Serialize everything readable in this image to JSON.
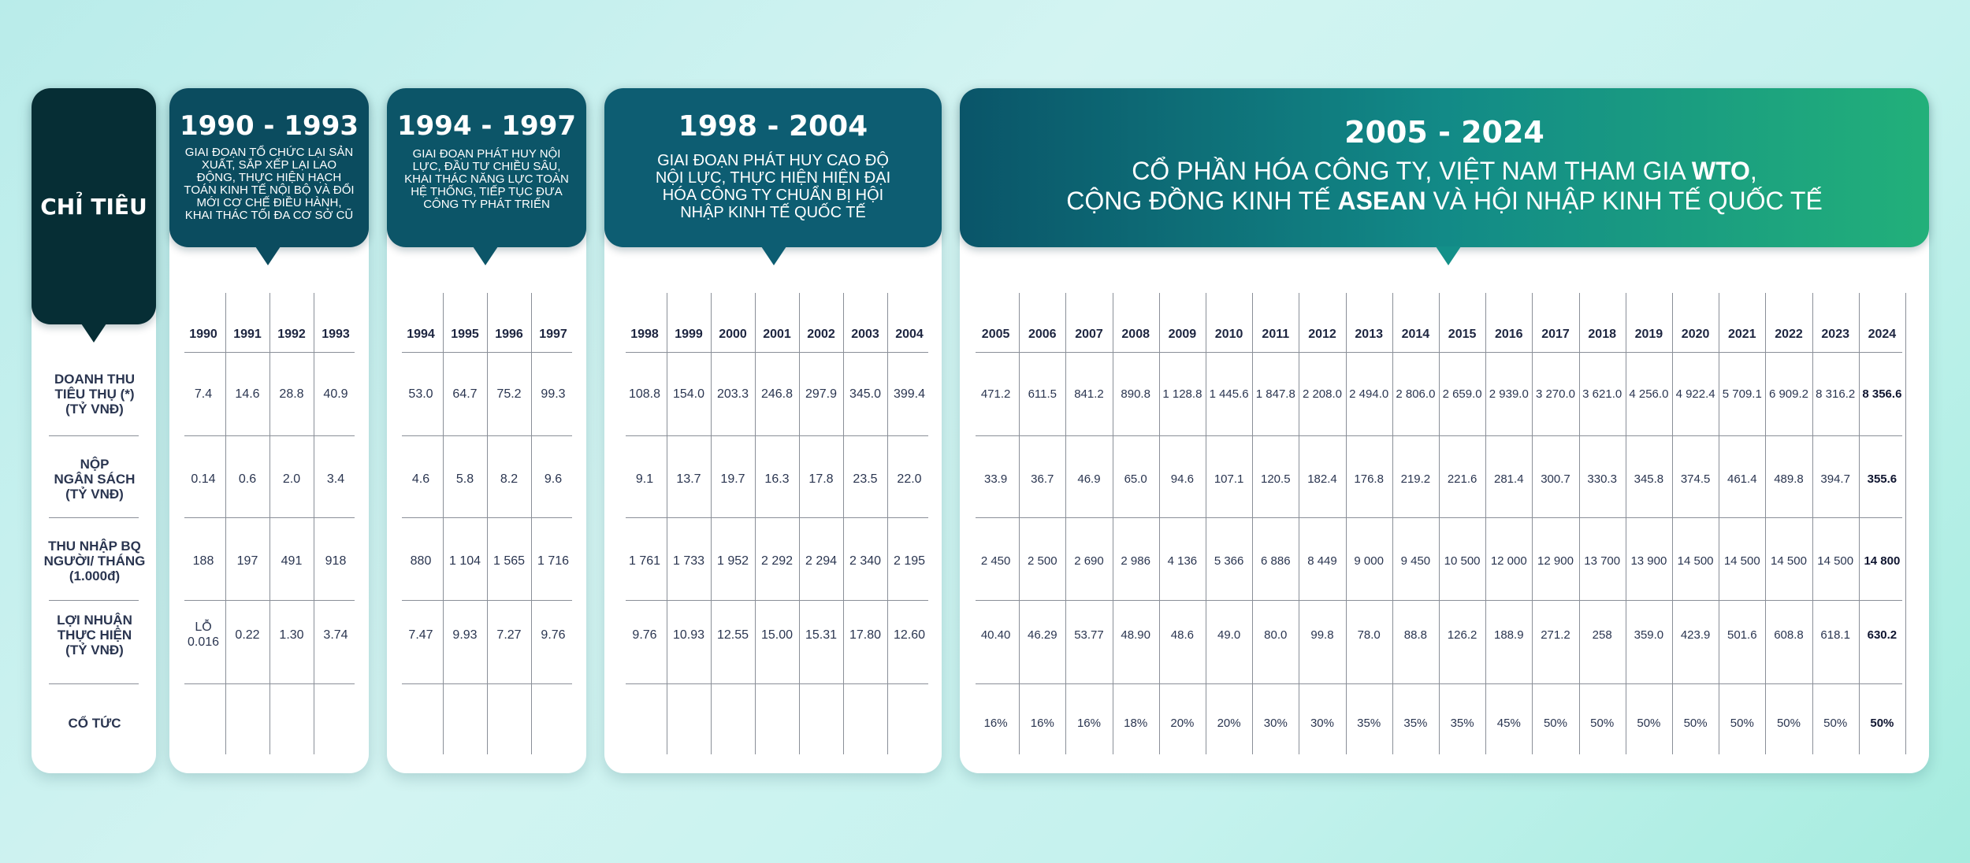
{
  "indicator_header": "CHỈ TIÊU",
  "row_labels": [
    "DOANH THU\nTIÊU THỤ (*)\n(TỶ VNĐ)",
    "NỘP\nNGÂN SÁCH\n(TỶ VNĐ)",
    "THU NHẬP BQ\nNGƯỜI/ THÁNG\n(1.000đ)",
    "LỢI NHUẬN\nTHỰC HIỆN\n(TỶ VNĐ)",
    "CỔ TỨC"
  ],
  "periods": [
    {
      "title": "1990 - 1993",
      "desc": "GIAI ĐOẠN TỔ CHỨC LẠI SẢN XUẤT, SẮP XẾP LẠI LAO ĐỘNG, THỰC HIỆN HẠCH TOÁN KINH TẾ NỘI BỘ VÀ ĐỔI MỚI CƠ CHẾ ĐIỀU HÀNH, KHAI THÁC TỐI ĐA CƠ SỞ CŨ",
      "years": [
        "1990",
        "1991",
        "1992",
        "1993"
      ],
      "rows": [
        [
          "7.4",
          "14.6",
          "28.8",
          "40.9"
        ],
        [
          "0.14",
          "0.6",
          "2.0",
          "3.4"
        ],
        [
          "188",
          "197",
          "491",
          "918"
        ],
        [
          "LỖ\n0.016",
          "0.22",
          "1.30",
          "3.74"
        ],
        [
          "",
          "",
          "",
          ""
        ]
      ]
    },
    {
      "title": "1994 - 1997",
      "desc": "GIAI ĐOẠN PHÁT HUY NỘI LỰC, ĐẦU TƯ CHIỀU SÂU, KHAI THÁC NĂNG LỰC TOÀN HỆ THỐNG, TIẾP TỤC ĐƯA CÔNG TY PHÁT TRIỂN",
      "years": [
        "1994",
        "1995",
        "1996",
        "1997"
      ],
      "rows": [
        [
          "53.0",
          "64.7",
          "75.2",
          "99.3"
        ],
        [
          "4.6",
          "5.8",
          "8.2",
          "9.6"
        ],
        [
          "880",
          "1 104",
          "1 565",
          "1 716"
        ],
        [
          "7.47",
          "9.93",
          "7.27",
          "9.76"
        ],
        [
          "",
          "",
          "",
          ""
        ]
      ]
    },
    {
      "title": "1998 - 2004",
      "desc": "GIAI ĐOẠN PHÁT HUY CAO ĐỘ NỘI LỰC, THỰC HIỆN HIỆN ĐẠI HÓA CÔNG TY CHUẨN BỊ HỘI NHẬP KINH TẾ QUỐC TẾ",
      "years": [
        "1998",
        "1999",
        "2000",
        "2001",
        "2002",
        "2003",
        "2004"
      ],
      "rows": [
        [
          "108.8",
          "154.0",
          "203.3",
          "246.8",
          "297.9",
          "345.0",
          "399.4"
        ],
        [
          "9.1",
          "13.7",
          "19.7",
          "16.3",
          "17.8",
          "23.5",
          "22.0"
        ],
        [
          "1 761",
          "1 733",
          "1 952",
          "2 292",
          "2 294",
          "2 340",
          "2 195"
        ],
        [
          "9.76",
          "10.93",
          "12.55",
          "15.00",
          "15.31",
          "17.80",
          "12.60"
        ],
        [
          "",
          "",
          "",
          "",
          "",
          "",
          ""
        ]
      ]
    },
    {
      "title": "2005 - 2024",
      "desc_line1_pre": "CỔ PHẦN HÓA CÔNG TY, VIỆT NAM THAM GIA ",
      "desc_line1_bold": "WTO",
      "desc_line1_post": ",",
      "desc_line2_pre": "CỘNG ĐỒNG KINH TẾ ",
      "desc_line2_bold": "ASEAN",
      "desc_line2_post": " VÀ HỘI NHẬP KINH TẾ QUỐC TẾ",
      "years": [
        "2005",
        "2006",
        "2007",
        "2008",
        "2009",
        "2010",
        "2011",
        "2012",
        "2013",
        "2014",
        "2015",
        "2016",
        "2017",
        "2018",
        "2019",
        "2020",
        "2021",
        "2022",
        "2023",
        "2024"
      ],
      "rows": [
        [
          "471.2",
          "611.5",
          "841.2",
          "890.8",
          "1 128.8",
          "1 445.6",
          "1 847.8",
          "2 208.0",
          "2 494.0",
          "2 806.0",
          "2 659.0",
          "2 939.0",
          "3 270.0",
          "3 621.0",
          "4 256.0",
          "4 922.4",
          "5 709.1",
          "6 909.2",
          "8 316.2",
          "8 356.6"
        ],
        [
          "33.9",
          "36.7",
          "46.9",
          "65.0",
          "94.6",
          "107.1",
          "120.5",
          "182.4",
          "176.8",
          "219.2",
          "221.6",
          "281.4",
          "300.7",
          "330.3",
          "345.8",
          "374.5",
          "461.4",
          "489.8",
          "394.7",
          "355.6"
        ],
        [
          "2 450",
          "2 500",
          "2 690",
          "2 986",
          "4 136",
          "5 366",
          "6 886",
          "8 449",
          "9 000",
          "9 450",
          "10 500",
          "12 000",
          "12 900",
          "13 700",
          "13 900",
          "14 500",
          "14 500",
          "14 500",
          "14 500",
          "14 800"
        ],
        [
          "40.40",
          "46.29",
          "53.77",
          "48.90",
          "48.6",
          "49.0",
          "80.0",
          "99.8",
          "78.0",
          "88.8",
          "126.2",
          "188.9",
          "271.2",
          "258",
          "359.0",
          "423.9",
          "501.6",
          "608.8",
          "618.1",
          "630.2"
        ],
        [
          "16%",
          "16%",
          "16%",
          "18%",
          "20%",
          "20%",
          "30%",
          "30%",
          "35%",
          "35%",
          "35%",
          "45%",
          "50%",
          "50%",
          "50%",
          "50%",
          "50%",
          "50%",
          "50%",
          "50%"
        ]
      ]
    }
  ],
  "colors": {
    "dark_teal": "#062e35",
    "banner_teal": "#0a5569",
    "banner_gradient_end": "#22b07a",
    "text": "#2a3550"
  }
}
